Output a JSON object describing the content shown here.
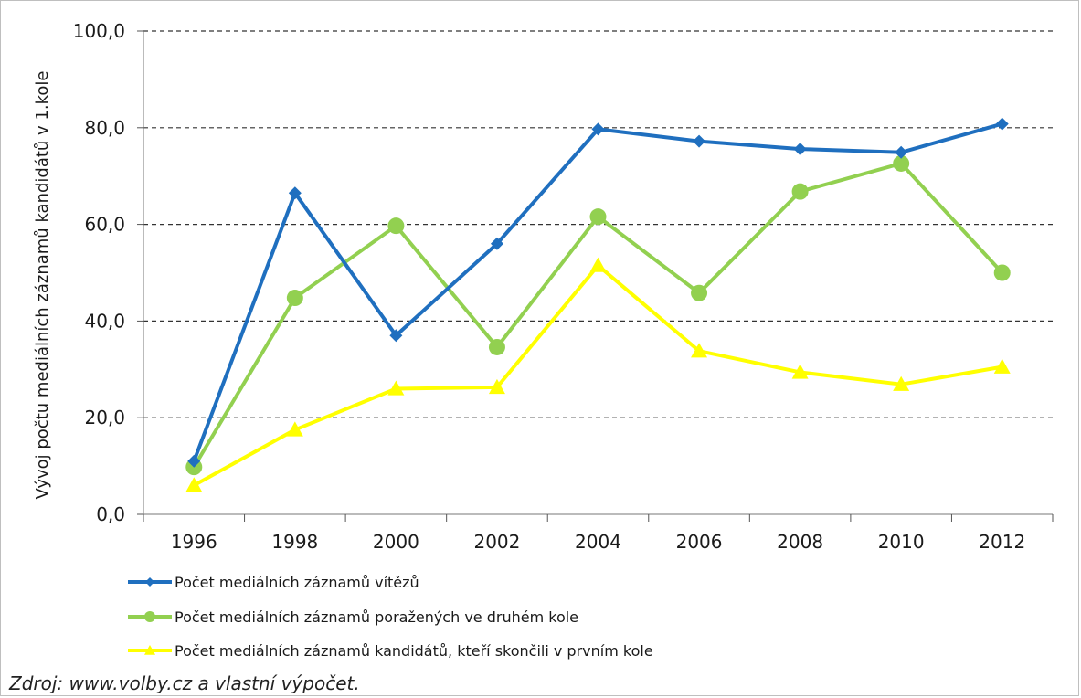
{
  "chart_data": {
    "type": "line",
    "categories": [
      "1996",
      "1998",
      "2000",
      "2002",
      "2004",
      "2006",
      "2008",
      "2010",
      "2012"
    ],
    "ylabel": "Vývoj počtu mediálních záznamů kandidátů v 1.kole",
    "ylim": [
      0,
      100
    ],
    "yticks": [
      "0,0",
      "20,0",
      "40,0",
      "60,0",
      "80,0",
      "100,0"
    ],
    "ytick_values": [
      0,
      20,
      40,
      60,
      80,
      100
    ],
    "grid": true,
    "legend_position": "bottom",
    "series": [
      {
        "name": "Počet mediálních záznamů vítězů",
        "color": "#1f6fbf",
        "marker": "diamond",
        "values": [
          11,
          66.5,
          37,
          56,
          79.7,
          77.2,
          75.6,
          74.9,
          80.8
        ]
      },
      {
        "name": "Počet mediálních záznamů poražených ve druhém kole",
        "color": "#92d050",
        "marker": "circle",
        "values": [
          9.8,
          44.8,
          59.7,
          34.6,
          61.6,
          45.8,
          66.8,
          72.6,
          50
        ]
      },
      {
        "name": "Počet mediálních záznamů kandidátů, kteří skončili v prvním kole",
        "color": "#ffff00",
        "marker": "triangle",
        "values": [
          6,
          17.5,
          26,
          26.3,
          51.5,
          33.8,
          29.4,
          26.9,
          30.5
        ]
      }
    ]
  },
  "source": "Zdroj: www.volby.cz a vlastní výpočet."
}
